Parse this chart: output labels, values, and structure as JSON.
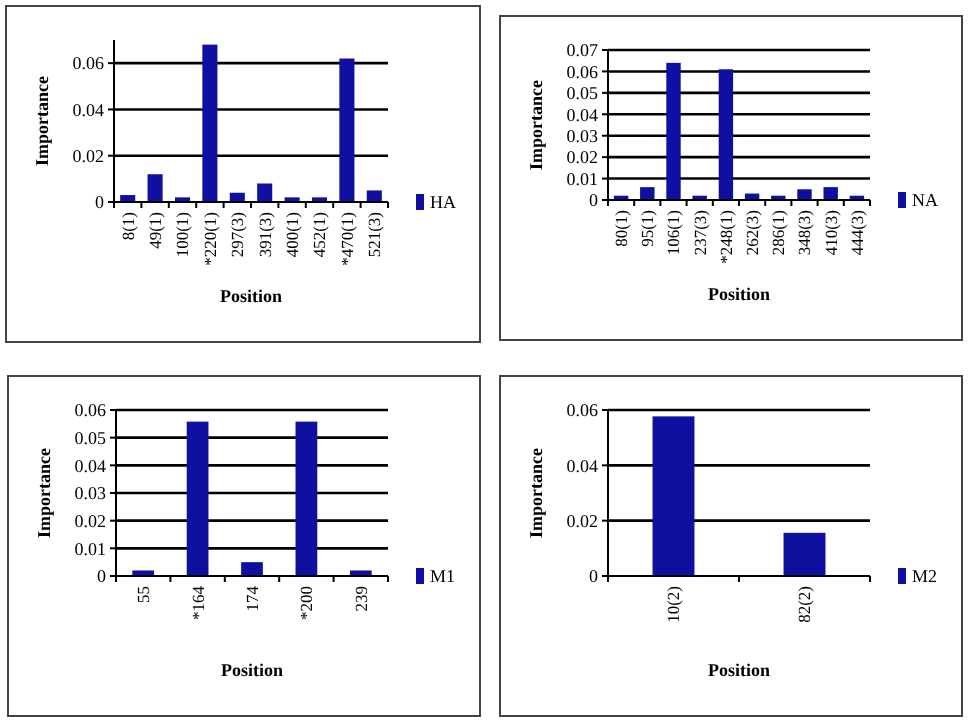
{
  "chart_data": [
    {
      "type": "bar",
      "xlabel": "Position",
      "ylabel": "Importance",
      "categories": [
        "8(1)",
        "49(1)",
        "100(1)",
        "*220(1)",
        "297(3)",
        "391(3)",
        "400(1)",
        "452(1)",
        "*470(1)",
        "521(3)"
      ],
      "series": [
        {
          "name": "HA",
          "color": "#1010a0",
          "values": [
            0.003,
            0.012,
            0.002,
            0.068,
            0.004,
            0.008,
            0.002,
            0.002,
            0.062,
            0.005
          ]
        }
      ],
      "ylim": [
        0,
        0.07
      ],
      "yticks": [
        0,
        0.02,
        0.04,
        0.06
      ],
      "grid": "y",
      "legend": "right"
    },
    {
      "type": "bar",
      "xlabel": "Position",
      "ylabel": "Importance",
      "categories": [
        "80(1)",
        "95(1)",
        "106(1)",
        "237(3)",
        "*248(1)",
        "262(3)",
        "286(1)",
        "348(3)",
        "410(3)",
        "444(3)"
      ],
      "series": [
        {
          "name": "NA",
          "color": "#1010a0",
          "values": [
            0.002,
            0.006,
            0.064,
            0.002,
            0.061,
            0.003,
            0.002,
            0.005,
            0.006,
            0.002
          ]
        }
      ],
      "ylim": [
        0,
        0.07
      ],
      "yticks": [
        0,
        0.01,
        0.02,
        0.03,
        0.04,
        0.05,
        0.06,
        0.07
      ],
      "grid": "y",
      "legend": "right"
    },
    {
      "type": "bar",
      "xlabel": "Position",
      "ylabel": "Importance",
      "categories": [
        "55",
        "*164",
        "174",
        "*200",
        "239"
      ],
      "series": [
        {
          "name": "M1",
          "color": "#1010a0",
          "values": [
            0.002,
            0.0558,
            0.005,
            0.0558,
            0.002
          ]
        }
      ],
      "ylim": [
        0,
        0.06
      ],
      "yticks": [
        0,
        0.01,
        0.02,
        0.03,
        0.04,
        0.05,
        0.06
      ],
      "grid": "y",
      "legend": "right"
    },
    {
      "type": "bar",
      "xlabel": "Position",
      "ylabel": "Importance",
      "categories": [
        "10(2)",
        "82(2)"
      ],
      "series": [
        {
          "name": "M2",
          "color": "#1010a0",
          "values": [
            0.0577,
            0.0156
          ]
        }
      ],
      "ylim": [
        0,
        0.06
      ],
      "yticks": [
        0,
        0.02,
        0.04,
        0.06
      ],
      "grid": "y",
      "legend": "right"
    }
  ]
}
